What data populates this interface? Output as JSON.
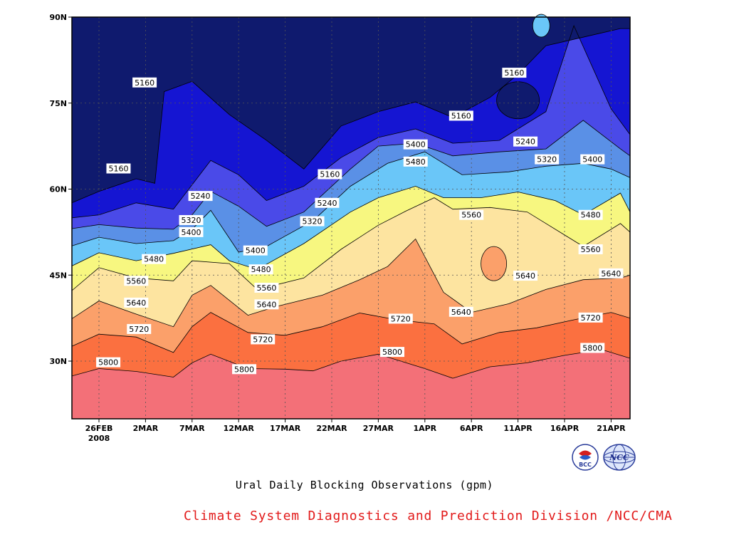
{
  "chart_data": {
    "type": "heatmap",
    "title": "Ural Daily Blocking Observations (gpm)",
    "xlabel": "",
    "ylabel": "",
    "y_ticks": [
      "30N",
      "45N",
      "60N",
      "75N",
      "90N"
    ],
    "x_ticks": [
      "26FEB",
      "2MAR",
      "7MAR",
      "12MAR",
      "17MAR",
      "22MAR",
      "27MAR",
      "1APR",
      "6APR",
      "11APR",
      "16APR",
      "21APR"
    ],
    "x_tick_year": "2008",
    "levels": [
      5160,
      5240,
      5320,
      5400,
      5480,
      5560,
      5640,
      5720,
      5800
    ],
    "level_colors": [
      "#0f1a6e",
      "#1515d2",
      "#4a4ae8",
      "#5a90e6",
      "#6ac6f8",
      "#f7f780",
      "#fde4a0",
      "#fba06a",
      "#fb7040",
      "#f37078"
    ],
    "grid": true,
    "contour_labels": [
      {
        "v": "5160",
        "lat": 78.6,
        "day": 4.9
      },
      {
        "v": "5160",
        "lat": 63.6,
        "day": 2.1
      },
      {
        "v": "5160",
        "lat": 62.6,
        "day": 24.8
      },
      {
        "v": "5160",
        "lat": 72.8,
        "day": 38.9
      },
      {
        "v": "5160",
        "lat": 80.3,
        "day": 44.6
      },
      {
        "v": "5240",
        "lat": 58.8,
        "day": 10.9
      },
      {
        "v": "5240",
        "lat": 57.6,
        "day": 24.5
      },
      {
        "v": "5240",
        "lat": 68.3,
        "day": 45.8
      },
      {
        "v": "5320",
        "lat": 54.6,
        "day": 9.9
      },
      {
        "v": "5320",
        "lat": 54.4,
        "day": 22.9
      },
      {
        "v": "5320",
        "lat": 65.2,
        "day": 48.1
      },
      {
        "v": "5400",
        "lat": 52.5,
        "day": 9.9
      },
      {
        "v": "5400",
        "lat": 49.3,
        "day": 16.8
      },
      {
        "v": "5400",
        "lat": 67.8,
        "day": 34.0
      },
      {
        "v": "5400",
        "lat": 65.2,
        "day": 53.0
      },
      {
        "v": "5480",
        "lat": 47.8,
        "day": 5.9
      },
      {
        "v": "5480",
        "lat": 46.0,
        "day": 17.4
      },
      {
        "v": "5480",
        "lat": 64.8,
        "day": 34.0
      },
      {
        "v": "5480",
        "lat": 55.5,
        "day": 52.8
      },
      {
        "v": "5560",
        "lat": 44.0,
        "day": 4.0
      },
      {
        "v": "5560",
        "lat": 42.8,
        "day": 18.0
      },
      {
        "v": "5560",
        "lat": 55.5,
        "day": 40.0
      },
      {
        "v": "5560",
        "lat": 49.5,
        "day": 52.8
      },
      {
        "v": "5640",
        "lat": 40.2,
        "day": 4.0
      },
      {
        "v": "5640",
        "lat": 39.9,
        "day": 18.0
      },
      {
        "v": "5640",
        "lat": 44.9,
        "day": 45.8
      },
      {
        "v": "5640",
        "lat": 38.6,
        "day": 38.9
      },
      {
        "v": "5640",
        "lat": 45.3,
        "day": 55.0
      },
      {
        "v": "5720",
        "lat": 37.4,
        "day": 32.4
      },
      {
        "v": "5720",
        "lat": 35.6,
        "day": 4.3
      },
      {
        "v": "5720",
        "lat": 33.8,
        "day": 17.6
      },
      {
        "v": "5720",
        "lat": 37.6,
        "day": 52.8
      },
      {
        "v": "5800",
        "lat": 29.8,
        "day": 1.0
      },
      {
        "v": "5800",
        "lat": 28.6,
        "day": 15.6
      },
      {
        "v": "5800",
        "lat": 31.6,
        "day": 31.5
      },
      {
        "v": "5800",
        "lat": 32.3,
        "day": 53.0
      }
    ]
  },
  "chart_caption": "Ural Daily Blocking Observations (gpm)",
  "footer_credit": "Climate System Diagnostics and Prediction Division /NCC/CMA",
  "logos": [
    {
      "name": "bcc-logo",
      "text": "BCC"
    },
    {
      "name": "ncc-logo",
      "text": "NCC"
    }
  ]
}
